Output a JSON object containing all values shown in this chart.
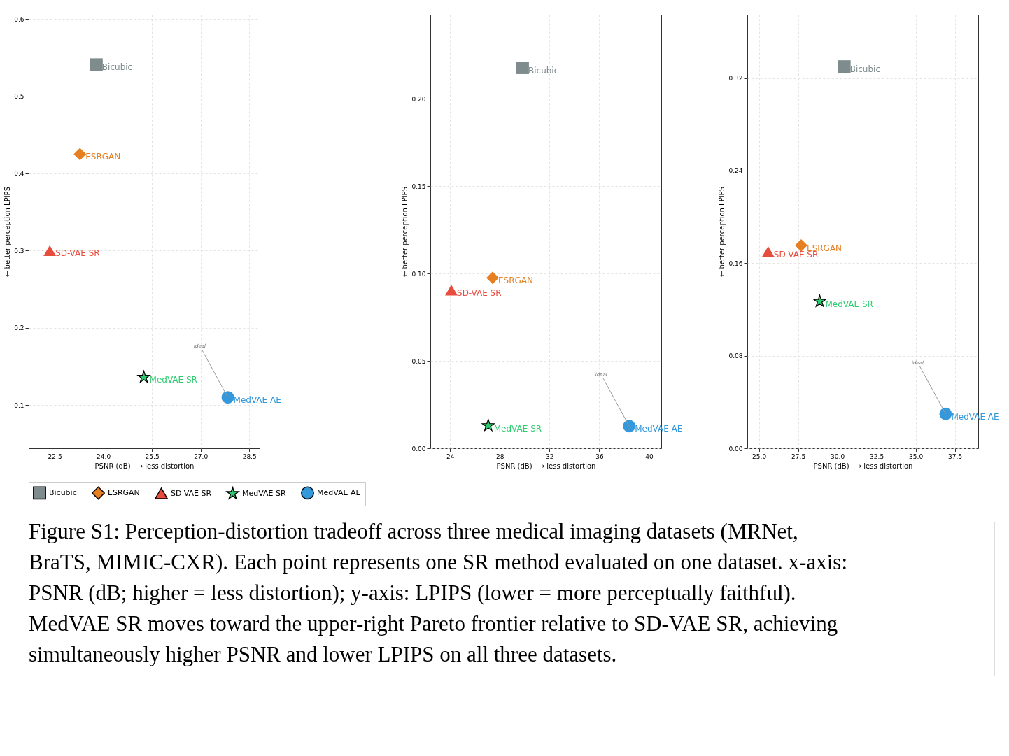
{
  "chart_data": [
    {
      "type": "scatter",
      "xlabel": "PSNR (dB)  ⟶  less distortion",
      "ylabel": "←  better perception  LPIPS",
      "xlim": [
        21.7,
        28.82
      ],
      "ylim": [
        0.044,
        0.6056
      ],
      "xticks": [
        {
          "value": 22.5,
          "label": "22.5"
        },
        {
          "value": 24,
          "label": "24.0"
        },
        {
          "value": 25.5,
          "label": "25.5"
        },
        {
          "value": 27,
          "label": "27.0"
        },
        {
          "value": 28.5,
          "label": "28.5"
        }
      ],
      "yticks": [
        0.1,
        0.2,
        0.3,
        0.4,
        0.5,
        0.6
      ],
      "grid": true,
      "legend": "bottom",
      "annotations": [
        {
          "text": "ideal",
          "x": 27.84,
          "y": 0.11
        },
        "Figure S1: Perception-distortion tradeoff across three medical imaging datasets (MRNet, BraTS, MIMIC-CXR). Each point represents one SR method evaluated on one dataset. x-axis: PSNR (dB; higher = less distortion); y-axis: LPIPS (lower = more perceptually faithful). MedVAE SR moves toward the upper-right Pareto frontier relative to SD-VAE SR, achieving simultaneously higher PSNR and lower LPIPS on all three datasets."
      ],
      "series": [
        {
          "name": "Bicubic",
          "color": "#7f8c8d",
          "marker": "square",
          "x": [
            23.79
          ],
          "values": [
            0.541
          ]
        },
        {
          "name": "ESRGAN",
          "color": "#e67e22",
          "marker": "diamond",
          "x": [
            23.28
          ],
          "values": [
            0.425
          ]
        },
        {
          "name": "SD-VAE SR",
          "color": "#e74c3c",
          "marker": "triangle",
          "x": [
            22.35
          ],
          "values": [
            0.3
          ]
        },
        {
          "name": "MedVAE SR",
          "color": "#2ecc71",
          "marker": "star",
          "x": [
            25.25
          ],
          "values": [
            0.136
          ]
        },
        {
          "name": "MedVAE AE",
          "color": "#3498db",
          "marker": "circle",
          "x": [
            27.84
          ],
          "values": [
            0.11
          ]
        }
      ]
    },
    {
      "type": "scatter",
      "xlabel": "PSNR (dB)  ⟶  less distortion",
      "ylabel": "←  better perception  LPIPS",
      "xlim": [
        22.41,
        40.99
      ],
      "ylim": [
        0,
        0.248
      ],
      "xticks": [
        24,
        28,
        32,
        36,
        40
      ],
      "yticks": [
        {
          "value": 0,
          "label": "0.00"
        },
        {
          "value": 0.05,
          "label": "0.05"
        },
        {
          "value": 0.1,
          "label": "0.10"
        },
        {
          "value": 0.15,
          "label": "0.15"
        },
        {
          "value": 0.2,
          "label": "0.20"
        }
      ],
      "grid": true,
      "legend": "bottom",
      "annotations": [
        {
          "text": "ideal",
          "x": 38.41,
          "y": 0.0127
        }
      ],
      "series": [
        {
          "name": "Bicubic",
          "color": "#7f8c8d",
          "marker": "square",
          "x": [
            29.84
          ],
          "values": [
            0.2176
          ]
        },
        {
          "name": "ESRGAN",
          "color": "#e67e22",
          "marker": "diamond",
          "x": [
            27.42
          ],
          "values": [
            0.0975
          ]
        },
        {
          "name": "SD-VAE SR",
          "color": "#e74c3c",
          "marker": "triangle",
          "x": [
            24.1
          ],
          "values": [
            0.0905
          ]
        },
        {
          "name": "MedVAE SR",
          "color": "#2ecc71",
          "marker": "star",
          "x": [
            27.07
          ],
          "values": [
            0.013
          ]
        },
        {
          "name": "MedVAE AE",
          "color": "#3498db",
          "marker": "circle",
          "x": [
            38.41
          ],
          "values": [
            0.0127
          ]
        }
      ]
    },
    {
      "type": "scatter",
      "xlabel": "PSNR (dB)  ⟶  less distortion",
      "ylabel": "←  better perception  LPIPS",
      "xlim": [
        24.26,
        38.99
      ],
      "ylim": [
        0,
        0.3748
      ],
      "xticks": [
        {
          "value": 25,
          "label": "25.0"
        },
        27.5,
        {
          "value": 30,
          "label": "30.0"
        },
        32.5,
        {
          "value": 35,
          "label": "35.0"
        },
        37.5
      ],
      "yticks": [
        {
          "value": 0,
          "label": "0.00"
        },
        0.08,
        0.16,
        0.24,
        0.32
      ],
      "grid": true,
      "legend": "bottom",
      "annotations": [
        {
          "text": "ideal",
          "x": 36.91,
          "y": 0.0298
        }
      ],
      "series": [
        {
          "name": "Bicubic",
          "color": "#7f8c8d",
          "marker": "square",
          "x": [
            30.45
          ],
          "values": [
            0.33
          ]
        },
        {
          "name": "ESRGAN",
          "color": "#e67e22",
          "marker": "diamond",
          "x": [
            27.7
          ],
          "values": [
            0.1754
          ]
        },
        {
          "name": "SD-VAE SR",
          "color": "#e74c3c",
          "marker": "triangle",
          "x": [
            25.59
          ],
          "values": [
            0.17
          ]
        },
        {
          "name": "MedVAE SR",
          "color": "#2ecc71",
          "marker": "star",
          "x": [
            28.88
          ],
          "values": [
            0.127
          ]
        },
        {
          "name": "MedVAE AE",
          "color": "#3498db",
          "marker": "circle",
          "x": [
            36.91
          ],
          "values": [
            0.0298
          ]
        }
      ]
    }
  ]
}
